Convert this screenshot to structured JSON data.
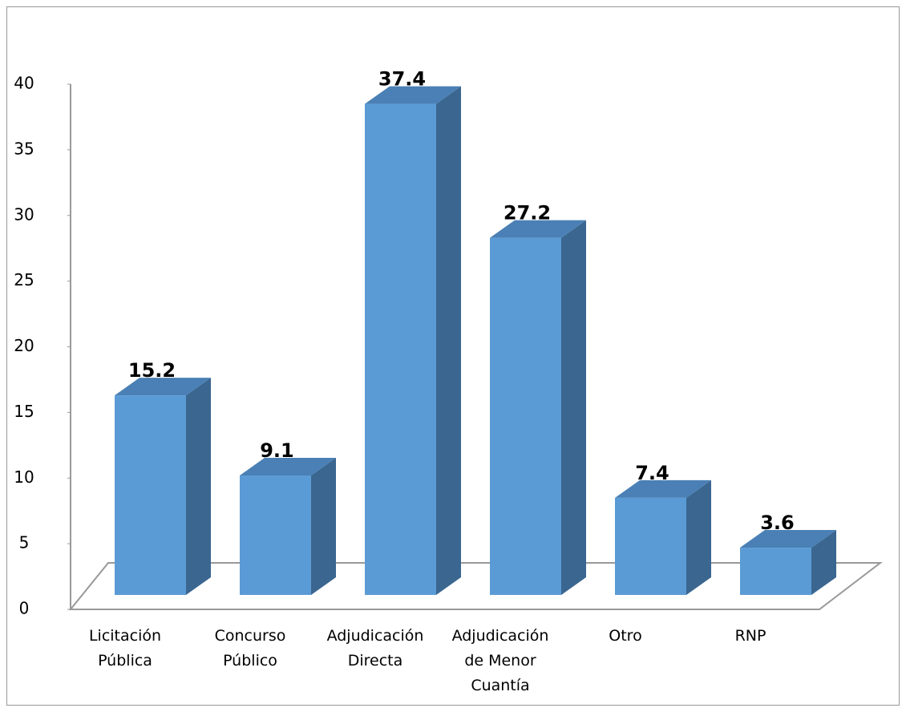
{
  "chart_data": {
    "type": "bar3d",
    "categories": [
      "Licitación Pública",
      "Concurso Público",
      "Adjudicación Directa",
      "Adjudicación de Menor Cuantía",
      "Otro",
      "RNP"
    ],
    "values": [
      15.2,
      9.1,
      37.4,
      27.2,
      7.4,
      3.6
    ],
    "color": "#5b9bd5",
    "ylim": [
      0,
      40
    ],
    "yticks": [
      0,
      5,
      10,
      15,
      20,
      25,
      30,
      35,
      40
    ]
  }
}
